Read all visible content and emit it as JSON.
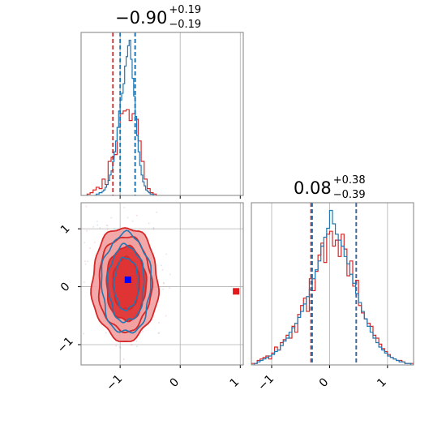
{
  "chart_data": {
    "type": "corner",
    "colors": {
      "red": "#d62728",
      "blue": "#1f77b4",
      "grid": "#b0b0b0",
      "axis": "#808080",
      "fill_light": "#f2a0a0",
      "fill_dark": "#e03232"
    },
    "parameters": [
      {
        "title": "−0.90",
        "plus": "+0.19",
        "minus": "−0.19"
      },
      {
        "title": "0.08",
        "plus": "+0.38",
        "minus": "−0.39"
      }
    ],
    "panels": [
      {
        "id": "hist-0",
        "type": "histogram",
        "xlim": [
          -1.65,
          1.05
        ],
        "xticks": [
          -1,
          0,
          1
        ],
        "grid": true,
        "quantiles": {
          "red": [
            -1.12,
            -0.75
          ],
          "blue": [
            -1.0,
            -0.75
          ]
        },
        "red": {
          "edges": [
            -1.55,
            -1.5,
            -1.45,
            -1.4,
            -1.35,
            -1.3,
            -1.25,
            -1.2,
            -1.15,
            -1.1,
            -1.05,
            -1.0,
            -0.95,
            -0.9,
            -0.85,
            -0.8,
            -0.75,
            -0.7,
            -0.65,
            -0.6,
            -0.55,
            -0.5,
            -0.45,
            -0.4
          ],
          "counts": [
            1,
            2,
            4,
            6,
            5,
            12,
            8,
            25,
            28,
            30,
            50,
            60,
            62,
            63,
            55,
            60,
            56,
            40,
            25,
            12,
            5,
            2,
            1
          ]
        },
        "blue": {
          "edges": [
            -1.4,
            -1.375,
            -1.35,
            -1.325,
            -1.3,
            -1.275,
            -1.25,
            -1.225,
            -1.2,
            -1.175,
            -1.15,
            -1.125,
            -1.1,
            -1.075,
            -1.05,
            -1.025,
            -1.0,
            -0.975,
            -0.95,
            -0.925,
            -0.9,
            -0.875,
            -0.85,
            -0.825,
            -0.8,
            -0.775,
            -0.75,
            -0.725,
            -0.7,
            -0.675,
            -0.65,
            -0.625,
            -0.6,
            -0.575,
            -0.55,
            -0.525,
            -0.5,
            -0.475,
            -0.45,
            -0.425
          ],
          "counts": [
            1,
            1,
            2,
            2,
            3,
            4,
            6,
            8,
            11,
            15,
            18,
            25,
            32,
            40,
            50,
            62,
            70,
            75,
            82,
            95,
            102,
            110,
            114,
            100,
            86,
            73,
            58,
            44,
            32,
            22,
            15,
            10,
            7,
            4,
            3,
            2,
            1,
            1,
            0
          ]
        }
      },
      {
        "id": "hist-1",
        "type": "histogram",
        "xlim": [
          -1.35,
          1.45
        ],
        "xticks": [
          -1,
          0,
          1
        ],
        "xticklabels": [
          "−1",
          "0",
          "1"
        ],
        "grid": true,
        "quantiles": {
          "red": [
            -0.32,
            0.46
          ],
          "blue": [
            -0.3,
            0.46
          ]
        },
        "red": {
          "edges": [
            -1.35,
            -1.3,
            -1.25,
            -1.2,
            -1.15,
            -1.1,
            -1.05,
            -1.0,
            -0.95,
            -0.9,
            -0.85,
            -0.8,
            -0.75,
            -0.7,
            -0.65,
            -0.6,
            -0.55,
            -0.5,
            -0.45,
            -0.4,
            -0.35,
            -0.3,
            -0.25,
            -0.2,
            -0.15,
            -0.1,
            -0.05,
            0.0,
            0.05,
            0.1,
            0.15,
            0.2,
            0.25,
            0.3,
            0.35,
            0.4,
            0.45,
            0.5,
            0.55,
            0.6,
            0.65,
            0.7,
            0.75,
            0.8,
            0.85,
            0.9,
            0.95,
            1.0,
            1.05,
            1.1,
            1.15,
            1.2,
            1.25,
            1.3,
            1.35,
            1.4,
            1.45
          ],
          "counts": [
            1,
            1,
            3,
            4,
            5,
            6,
            4,
            8,
            12,
            10,
            15,
            17,
            20,
            18,
            26,
            22,
            34,
            40,
            45,
            36,
            58,
            50,
            63,
            74,
            82,
            69,
            88,
            90,
            80,
            84,
            73,
            88,
            78,
            60,
            70,
            53,
            57,
            40,
            35,
            31,
            28,
            26,
            20,
            18,
            14,
            11,
            9,
            7,
            5,
            4,
            3,
            3,
            2,
            1,
            1,
            1
          ]
        },
        "blue": {
          "edges": [
            -1.35,
            -1.3,
            -1.25,
            -1.2,
            -1.15,
            -1.1,
            -1.05,
            -1.0,
            -0.95,
            -0.9,
            -0.85,
            -0.8,
            -0.75,
            -0.7,
            -0.65,
            -0.6,
            -0.55,
            -0.5,
            -0.45,
            -0.4,
            -0.35,
            -0.3,
            -0.25,
            -0.2,
            -0.15,
            -0.1,
            -0.05,
            0.0,
            0.05,
            0.1,
            0.15,
            0.2,
            0.25,
            0.3,
            0.35,
            0.4,
            0.45,
            0.5,
            0.55,
            0.6,
            0.65,
            0.7,
            0.75,
            0.8,
            0.85,
            0.9,
            0.95,
            1.0,
            1.05,
            1.1,
            1.15,
            1.2,
            1.25,
            1.3,
            1.35,
            1.4,
            1.45
          ],
          "counts": [
            0,
            1,
            2,
            3,
            4,
            5,
            6,
            7,
            9,
            10,
            13,
            16,
            18,
            22,
            25,
            28,
            32,
            36,
            41,
            46,
            51,
            58,
            64,
            70,
            80,
            86,
            92,
            104,
            95,
            88,
            84,
            80,
            73,
            68,
            61,
            55,
            48,
            42,
            36,
            31,
            26,
            22,
            18,
            15,
            12,
            10,
            8,
            6,
            5,
            4,
            3,
            2,
            2,
            1,
            1,
            0
          ]
        }
      },
      {
        "id": "scatter-10",
        "type": "2d-density",
        "xlim": [
          -1.65,
          1.05
        ],
        "ylim": [
          -1.35,
          1.45
        ],
        "xticks": [
          -1,
          0,
          1
        ],
        "xticklabels": [
          "−1",
          "0",
          "1"
        ],
        "yticks": [
          -1,
          0,
          1
        ],
        "yticklabels": [
          "−1",
          "0",
          "1"
        ],
        "grid": true,
        "red_levels": [
          {
            "cx": -0.92,
            "cy": 0.05,
            "rx": 0.55,
            "ry": 0.98,
            "fill": "light"
          },
          {
            "cx": -0.92,
            "cy": 0.05,
            "rx": 0.44,
            "ry": 0.82,
            "fill": "light"
          },
          {
            "cx": -0.9,
            "cy": 0.05,
            "rx": 0.33,
            "ry": 0.64,
            "fill": "dark"
          },
          {
            "cx": -0.9,
            "cy": 0.05,
            "rx": 0.22,
            "ry": 0.45,
            "fill": "dark"
          }
        ],
        "blue_levels": [
          {
            "cx": -0.9,
            "cy": 0.05,
            "rx": 0.41,
            "ry": 0.86
          },
          {
            "cx": -0.9,
            "cy": 0.05,
            "rx": 0.3,
            "ry": 0.66
          },
          {
            "cx": -0.9,
            "cy": 0.05,
            "rx": 0.2,
            "ry": 0.45
          }
        ],
        "markers": [
          {
            "color": "blue",
            "x": -0.87,
            "y": 0.12
          },
          {
            "color": "red",
            "x": 0.93,
            "y": -0.08
          }
        ]
      }
    ]
  }
}
